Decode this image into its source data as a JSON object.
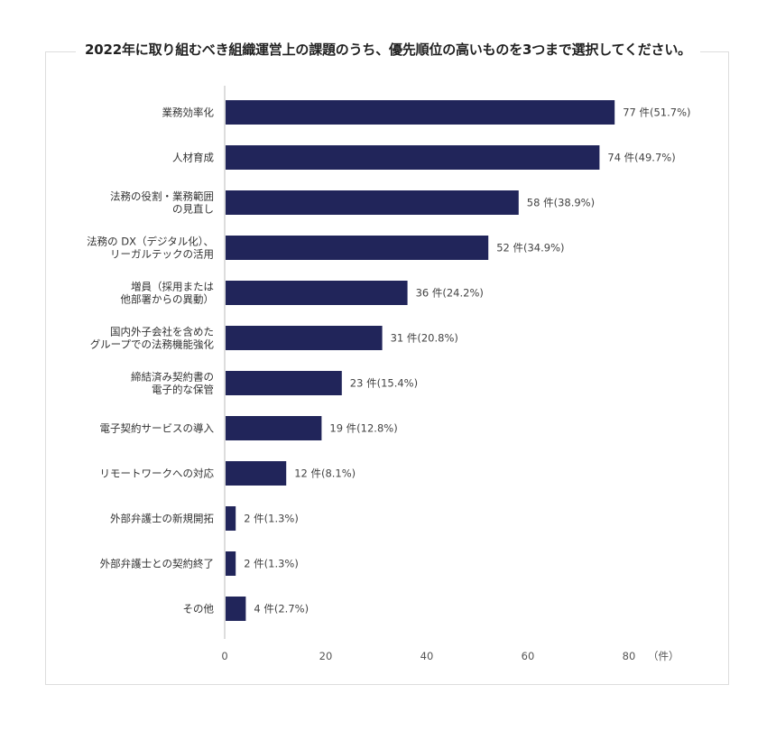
{
  "title": "2022年に取り組むべき組織運営上の課題のうち、優先順位の高いものを3つまで選択してください。",
  "chart_data": {
    "type": "bar",
    "orientation": "horizontal",
    "categories": [
      [
        "業務効率化"
      ],
      [
        "人材育成"
      ],
      [
        "法務の役割・業務範囲",
        "の見直し"
      ],
      [
        "法務の DX（デジタル化）、",
        "リーガルテックの活用"
      ],
      [
        "増員（採用または",
        "他部署からの異動）"
      ],
      [
        "国内外子会社を含めた",
        "グループでの法務機能強化"
      ],
      [
        "締結済み契約書の",
        "電子的な保管"
      ],
      [
        "電子契約サービスの導入"
      ],
      [
        "リモートワークへの対応"
      ],
      [
        "外部弁護士の新規開拓"
      ],
      [
        "外部弁護士との契約終了"
      ],
      [
        "その他"
      ]
    ],
    "values": [
      77,
      74,
      58,
      52,
      36,
      31,
      23,
      19,
      12,
      2,
      2,
      4
    ],
    "data_labels": [
      "77 件(51.7%)",
      "74 件(49.7%)",
      "58 件(38.9%)",
      "52 件(34.9%)",
      "36 件(24.2%)",
      "31 件(20.8%)",
      "23 件(15.4%)",
      "19 件(12.8%)",
      "12 件(8.1%)",
      "2 件(1.3%)",
      "2 件(1.3%)",
      "4 件(2.7%)"
    ],
    "xlim": [
      0,
      80
    ],
    "xticks": [
      0,
      20,
      40,
      60,
      80
    ],
    "xunit": "（件）",
    "grid": false,
    "legend": "none",
    "bar_color": "#21255a"
  }
}
